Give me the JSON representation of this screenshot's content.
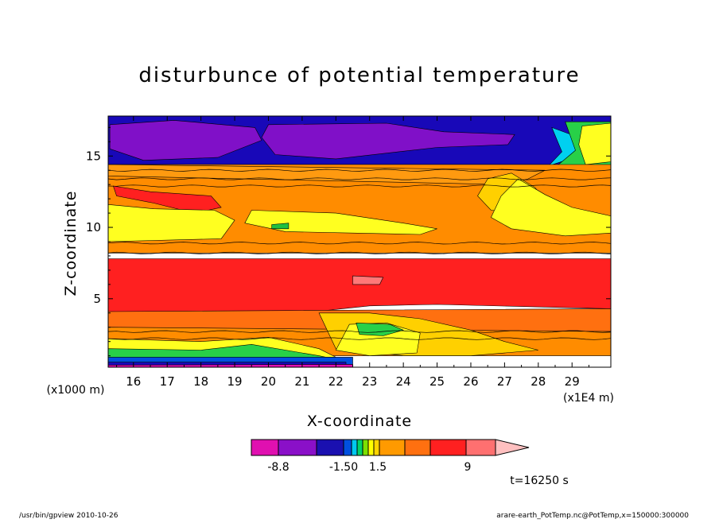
{
  "chart_data": {
    "type": "heatmap",
    "title": "disturbunce of potential temperature",
    "xlabel": "X-coordinate",
    "ylabel": "Z-coordinate",
    "x_unit": "(x1E4 m)",
    "y_unit": "(x1000 m)",
    "xlim": [
      15.25,
      30.15
    ],
    "ylim": [
      0.2,
      17.8
    ],
    "x_ticks": [
      "16",
      "17",
      "18",
      "19",
      "20",
      "21",
      "22",
      "23",
      "24",
      "25",
      "26",
      "27",
      "28",
      "29"
    ],
    "y_ticks": [
      "5",
      "10",
      "15"
    ],
    "colorbar": {
      "tick_labels": [
        "-8.8",
        "-1.50",
        "1.5",
        "9"
      ],
      "colors": [
        "#e010b0",
        "#8a10c8",
        "#1a10b0",
        "#0050e0",
        "#00c8f0",
        "#00d26a",
        "#7ce000",
        "#ffff00",
        "#ffd400",
        "#ff9a00",
        "#ff7010",
        "#ff2020",
        "#ff7070",
        "#ffc0c0"
      ]
    },
    "fields": [
      {
        "level": "#1808b8",
        "region": [
          [
            15.25,
            17.8
          ],
          [
            30.15,
            17.8
          ],
          [
            30.15,
            14.4
          ],
          [
            15.25,
            14.4
          ]
        ]
      },
      {
        "level": "#8010c8",
        "region": [
          [
            15.3,
            17.2
          ],
          [
            17.2,
            17.5
          ],
          [
            19.6,
            17.0
          ],
          [
            19.8,
            16.1
          ],
          [
            18.5,
            14.9
          ],
          [
            16.3,
            14.7
          ],
          [
            15.3,
            15.5
          ]
        ]
      },
      {
        "level": "#8010c8",
        "region": [
          [
            20.0,
            17.2
          ],
          [
            23.5,
            17.3
          ],
          [
            25.2,
            16.7
          ],
          [
            27.3,
            16.5
          ],
          [
            27.1,
            15.8
          ],
          [
            25.0,
            15.6
          ],
          [
            22.0,
            14.8
          ],
          [
            20.2,
            15.1
          ],
          [
            19.8,
            16.3
          ]
        ]
      },
      {
        "level": "#00d0f0",
        "region": [
          [
            28.4,
            17.0
          ],
          [
            29.2,
            16.3
          ],
          [
            29.2,
            15.0
          ],
          [
            28.3,
            14.3
          ],
          [
            28.7,
            15.3
          ]
        ]
      },
      {
        "level": "#28d048",
        "region": [
          [
            28.8,
            17.4
          ],
          [
            30.15,
            17.4
          ],
          [
            30.15,
            10.7
          ],
          [
            29.2,
            10.9
          ],
          [
            28.4,
            12.4
          ],
          [
            28.0,
            13.4
          ],
          [
            28.6,
            14.4
          ],
          [
            29.1,
            15.4
          ]
        ]
      },
      {
        "level": "#ffff20",
        "region": [
          [
            29.3,
            17.1
          ],
          [
            30.15,
            17.3
          ],
          [
            30.15,
            14.6
          ],
          [
            29.4,
            14.4
          ],
          [
            29.2,
            15.8
          ]
        ]
      },
      {
        "level": "#00d0f0",
        "region": [
          [
            28.9,
            12.7
          ],
          [
            29.4,
            12.8
          ],
          [
            29.3,
            12.3
          ],
          [
            28.9,
            12.4
          ]
        ]
      },
      {
        "level": "#ff8c00",
        "region": [
          [
            15.25,
            14.4
          ],
          [
            30.15,
            14.4
          ],
          [
            30.15,
            8.2
          ],
          [
            15.25,
            8.2
          ]
        ]
      },
      {
        "level": "#ff9a10",
        "region": [
          [
            15.25,
            14.4
          ],
          [
            28.2,
            14.0
          ],
          [
            27.7,
            13.4
          ],
          [
            27.0,
            13.0
          ],
          [
            15.25,
            13.6
          ]
        ]
      },
      {
        "level": "#ffd000",
        "region": [
          [
            27.2,
            13.8
          ],
          [
            27.9,
            12.8
          ],
          [
            28.3,
            11.6
          ],
          [
            27.6,
            11.0
          ],
          [
            26.6,
            11.2
          ],
          [
            26.2,
            12.2
          ],
          [
            26.5,
            13.4
          ]
        ]
      },
      {
        "level": "#ffff20",
        "region": [
          [
            27.4,
            13.4
          ],
          [
            28.2,
            12.3
          ],
          [
            29.0,
            11.4
          ],
          [
            30.15,
            10.8
          ],
          [
            30.15,
            9.6
          ],
          [
            28.8,
            9.4
          ],
          [
            27.2,
            9.9
          ],
          [
            26.6,
            10.7
          ],
          [
            26.9,
            12.2
          ]
        ]
      },
      {
        "level": "#ff2020",
        "region": [
          [
            15.4,
            12.9
          ],
          [
            16.5,
            12.5
          ],
          [
            18.3,
            12.2
          ],
          [
            18.6,
            11.4
          ],
          [
            17.8,
            11.0
          ],
          [
            16.6,
            11.7
          ],
          [
            15.5,
            12.2
          ]
        ]
      },
      {
        "level": "#ffff20",
        "region": [
          [
            19.5,
            11.2
          ],
          [
            22.0,
            11.0
          ],
          [
            24.0,
            10.3
          ],
          [
            25.0,
            9.9
          ],
          [
            24.5,
            9.5
          ],
          [
            22.5,
            9.6
          ],
          [
            20.5,
            9.7
          ],
          [
            19.3,
            10.3
          ]
        ]
      },
      {
        "level": "#20c040",
        "region": [
          [
            20.1,
            10.2
          ],
          [
            20.6,
            10.3
          ],
          [
            20.6,
            9.9
          ],
          [
            20.1,
            9.9
          ]
        ]
      },
      {
        "level": "#28d048",
        "region": [
          [
            15.25,
            11.2
          ],
          [
            16.5,
            10.8
          ],
          [
            18.0,
            10.6
          ],
          [
            18.5,
            9.8
          ],
          [
            17.5,
            9.3
          ],
          [
            15.25,
            9.4
          ]
        ]
      },
      {
        "level": "#00d0f0",
        "region": [
          [
            15.5,
            10.4
          ],
          [
            16.0,
            10.4
          ],
          [
            16.0,
            9.8
          ],
          [
            15.5,
            9.8
          ]
        ]
      },
      {
        "level": "#00d0f0",
        "region": [
          [
            17.0,
            10.4
          ],
          [
            17.5,
            10.4
          ],
          [
            17.5,
            10.0
          ],
          [
            17.0,
            10.0
          ]
        ]
      },
      {
        "level": "#ffff20",
        "region": [
          [
            15.25,
            11.6
          ],
          [
            16.6,
            11.3
          ],
          [
            18.4,
            11.2
          ],
          [
            19.0,
            10.5
          ],
          [
            18.6,
            9.2
          ],
          [
            15.25,
            9.0
          ]
        ]
      },
      {
        "level": "#ff2020",
        "region": [
          [
            15.25,
            7.8
          ],
          [
            30.15,
            7.8
          ],
          [
            30.15,
            4.3
          ],
          [
            25.0,
            4.6
          ],
          [
            23.0,
            4.5
          ],
          [
            21.0,
            4.0
          ],
          [
            19.0,
            3.8
          ],
          [
            17.0,
            4.0
          ],
          [
            15.25,
            4.1
          ]
        ]
      },
      {
        "level": "#ff7878",
        "region": [
          [
            22.5,
            6.6
          ],
          [
            23.4,
            6.5
          ],
          [
            23.3,
            6.0
          ],
          [
            22.5,
            6.0
          ]
        ]
      },
      {
        "level": "#ff7010",
        "region": [
          [
            15.25,
            4.1
          ],
          [
            30.15,
            4.3
          ],
          [
            30.15,
            2.7
          ],
          [
            15.25,
            2.7
          ]
        ]
      },
      {
        "level": "#ff8c00",
        "region": [
          [
            15.25,
            3.0
          ],
          [
            30.15,
            2.7
          ],
          [
            30.15,
            1.0
          ],
          [
            15.25,
            1.0
          ]
        ]
      },
      {
        "level": "#ffd000",
        "region": [
          [
            21.5,
            4.0
          ],
          [
            23.0,
            4.0
          ],
          [
            24.5,
            3.6
          ],
          [
            26.0,
            2.8
          ],
          [
            27.0,
            2.0
          ],
          [
            28.0,
            1.4
          ],
          [
            26.0,
            1.0
          ],
          [
            24.0,
            1.0
          ],
          [
            22.0,
            1.5
          ]
        ]
      },
      {
        "level": "#ffff20",
        "region": [
          [
            22.4,
            3.2
          ],
          [
            23.5,
            3.3
          ],
          [
            24.5,
            2.6
          ],
          [
            24.4,
            1.2
          ],
          [
            23.0,
            1.0
          ],
          [
            22.0,
            1.4
          ]
        ]
      },
      {
        "level": "#28d048",
        "region": [
          [
            22.6,
            3.3
          ],
          [
            23.6,
            3.2
          ],
          [
            24.0,
            2.8
          ],
          [
            23.4,
            2.4
          ],
          [
            22.7,
            2.5
          ]
        ]
      },
      {
        "level": "#ffff20",
        "region": [
          [
            15.25,
            2.2
          ],
          [
            18.0,
            2.0
          ],
          [
            20.0,
            2.3
          ],
          [
            21.5,
            1.5
          ],
          [
            22.0,
            0.9
          ],
          [
            15.25,
            0.9
          ]
        ]
      },
      {
        "level": "#28d048",
        "region": [
          [
            15.25,
            1.5
          ],
          [
            18.0,
            1.4
          ],
          [
            19.5,
            1.8
          ],
          [
            21.5,
            1.0
          ],
          [
            22.1,
            0.7
          ],
          [
            15.25,
            0.7
          ]
        ]
      },
      {
        "level": "#0050e0",
        "region": [
          [
            15.25,
            0.9
          ],
          [
            22.5,
            0.9
          ],
          [
            22.5,
            0.2
          ],
          [
            15.25,
            0.2
          ]
        ]
      },
      {
        "level": "#1808b8",
        "region": [
          [
            15.25,
            0.55
          ],
          [
            22.3,
            0.55
          ],
          [
            22.3,
            0.2
          ],
          [
            15.25,
            0.2
          ]
        ]
      },
      {
        "level": "#e010b0",
        "region": [
          [
            15.25,
            0.2
          ],
          [
            22.5,
            0.2
          ],
          [
            22.5,
            0.4
          ],
          [
            15.25,
            0.35
          ]
        ]
      }
    ],
    "contour_levels_z": [
      14.0,
      13.4,
      12.9,
      8.9,
      8.2,
      2.7,
      2.2
    ]
  },
  "info": {
    "time": "t=16250 s",
    "footer_left": "/usr/bin/gpview   2010-10-26",
    "footer_right": "arare-earth_PotTemp.nc@PotTemp,x=150000:300000"
  }
}
